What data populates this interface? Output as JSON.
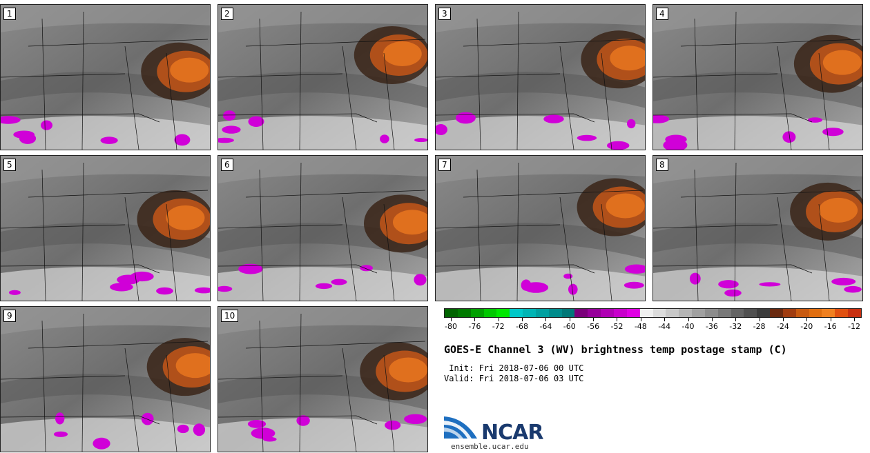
{
  "panels": [
    {
      "label": "1"
    },
    {
      "label": "2"
    },
    {
      "label": "3"
    },
    {
      "label": "4"
    },
    {
      "label": "5"
    },
    {
      "label": "6"
    },
    {
      "label": "7"
    },
    {
      "label": "8"
    },
    {
      "label": "9"
    },
    {
      "label": "10"
    }
  ],
  "colorbar": {
    "colors": [
      "#006400",
      "#007a00",
      "#00a000",
      "#00c800",
      "#00e800",
      "#00c8c8",
      "#00b4b4",
      "#00a0a0",
      "#008c8c",
      "#007878",
      "#7a007a",
      "#96009a",
      "#b000b4",
      "#c800cc",
      "#e000e4",
      "#f0f0f0",
      "#dcdcdc",
      "#c8c8c8",
      "#b4b4b4",
      "#a0a0a0",
      "#8c8c8c",
      "#787878",
      "#646464",
      "#505050",
      "#3c3c3c",
      "#6a2a10",
      "#a03c10",
      "#c85a10",
      "#e06e10",
      "#f08020",
      "#e05010",
      "#c83010"
    ],
    "ticks": [
      "-80",
      "-76",
      "-72",
      "-68",
      "-64",
      "-60",
      "-56",
      "-52",
      "-48",
      "-44",
      "-40",
      "-36",
      "-32",
      "-28",
      "-24",
      "-20",
      "-16",
      "-12"
    ]
  },
  "title": "GOES-E Channel 3 (WV) brightness temp postage stamp (C)",
  "init": " Init: Fri 2018-07-06 00 UTC",
  "valid": "Valid: Fri 2018-07-06 03 UTC",
  "logo": {
    "name": "NCAR",
    "url": "ensemble.ucar.edu"
  }
}
